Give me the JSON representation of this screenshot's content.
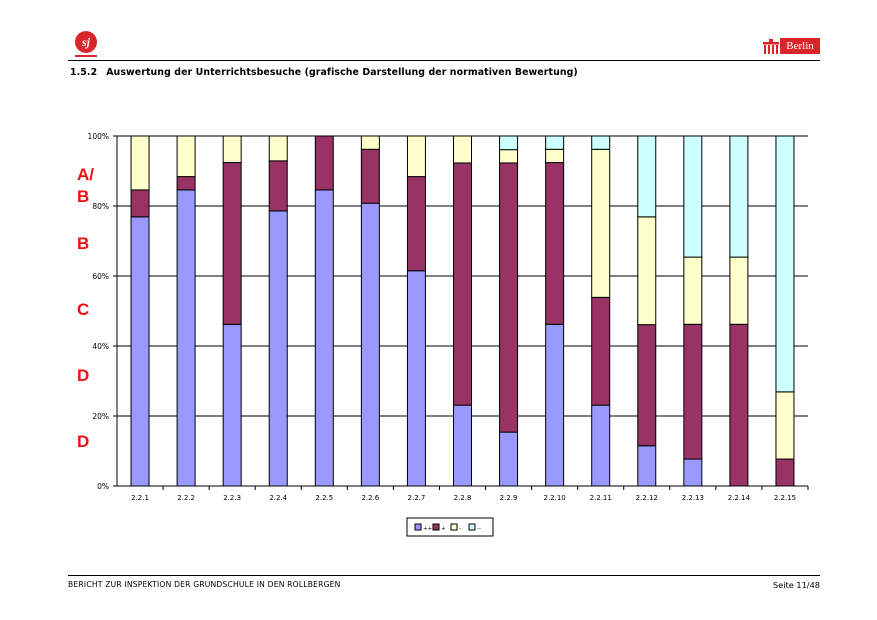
{
  "header": {
    "logo_text": "sj",
    "berlin_label": "Berlin"
  },
  "section": {
    "number": "1.5.2",
    "title": "Auswertung der Unterrichtsbesuche (grafische Darstellung der normativen Bewertung)"
  },
  "grade_labels": [
    "A/",
    "B",
    "B",
    "C",
    "D",
    "D"
  ],
  "chart_data": {
    "type": "bar",
    "stacked": true,
    "percent": true,
    "categories": [
      "2.2.1",
      "2.2.2",
      "2.2.3",
      "2.2.4",
      "2.2.5",
      "2.2.6",
      "2.2.7",
      "2.2.8",
      "2.2.9",
      "2.2.10",
      "2.2.11",
      "2.2.12",
      "2.2.13",
      "2.2.14",
      "2.2.15"
    ],
    "series": [
      {
        "name": "++",
        "color": "#9999ff",
        "values": [
          76.9,
          84.6,
          46.2,
          78.6,
          84.6,
          80.8,
          61.5,
          23.1,
          15.4,
          46.2,
          23.1,
          11.5,
          7.7,
          0,
          0
        ]
      },
      {
        "name": "+",
        "color": "#993366",
        "values": [
          7.7,
          3.8,
          46.2,
          14.3,
          15.4,
          15.4,
          26.9,
          69.2,
          76.9,
          46.2,
          30.8,
          34.6,
          38.5,
          46.2,
          7.7
        ]
      },
      {
        "name": "-",
        "color": "#ffffcc",
        "values": [
          15.4,
          11.6,
          7.6,
          7.1,
          0,
          3.8,
          11.6,
          7.7,
          3.8,
          3.8,
          42.3,
          30.8,
          19.2,
          19.2,
          19.2
        ]
      },
      {
        "name": "--",
        "color": "#ccffff",
        "values": [
          0,
          0,
          0,
          0,
          0,
          0,
          0,
          0,
          3.9,
          3.8,
          3.8,
          23.1,
          34.6,
          34.6,
          73.1
        ]
      }
    ],
    "y_ticks": [
      "0%",
      "20%",
      "40%",
      "60%",
      "80%",
      "100%"
    ],
    "ylim": [
      0,
      100
    ],
    "grid": true,
    "legend_position": "bottom"
  },
  "footer": {
    "report": "BERICHT ZUR INSPEKTION DER GRUNDSCHULE IN DEN ROLLBERGEN",
    "page": "Seite 11/48"
  }
}
